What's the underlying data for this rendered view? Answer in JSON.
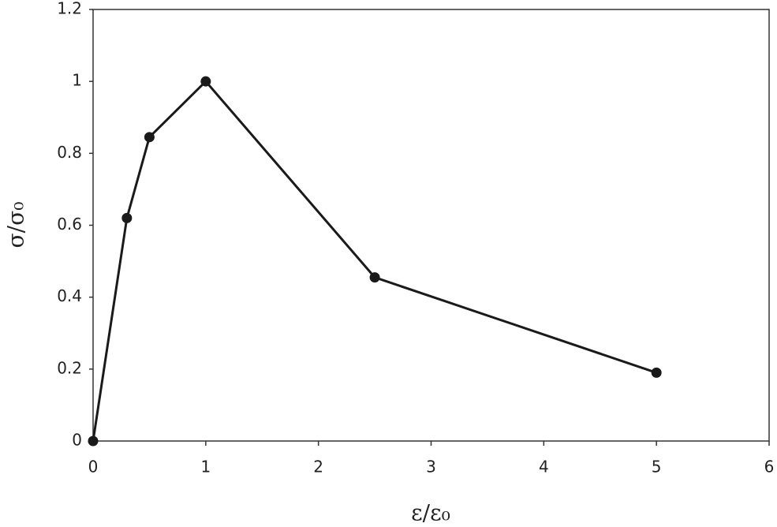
{
  "chart_data": {
    "type": "line",
    "x_label": "ε/ε₀",
    "y_label": "σ/σ₀",
    "x": [
      0,
      0.3,
      0.5,
      1,
      2.5,
      5
    ],
    "series": [
      {
        "color": "#1a1a1a",
        "values": [
          0,
          0.62,
          0.845,
          1.0,
          0.455,
          0.19
        ]
      }
    ],
    "xlim": [
      0,
      6
    ],
    "xticks": [
      0,
      1,
      2,
      3,
      4,
      5,
      6
    ],
    "ylim": [
      0,
      1.2
    ],
    "yticks": [
      0,
      0.2,
      0.4,
      0.6,
      0.8,
      1,
      1.2
    ],
    "grid": false,
    "markers": true
  }
}
